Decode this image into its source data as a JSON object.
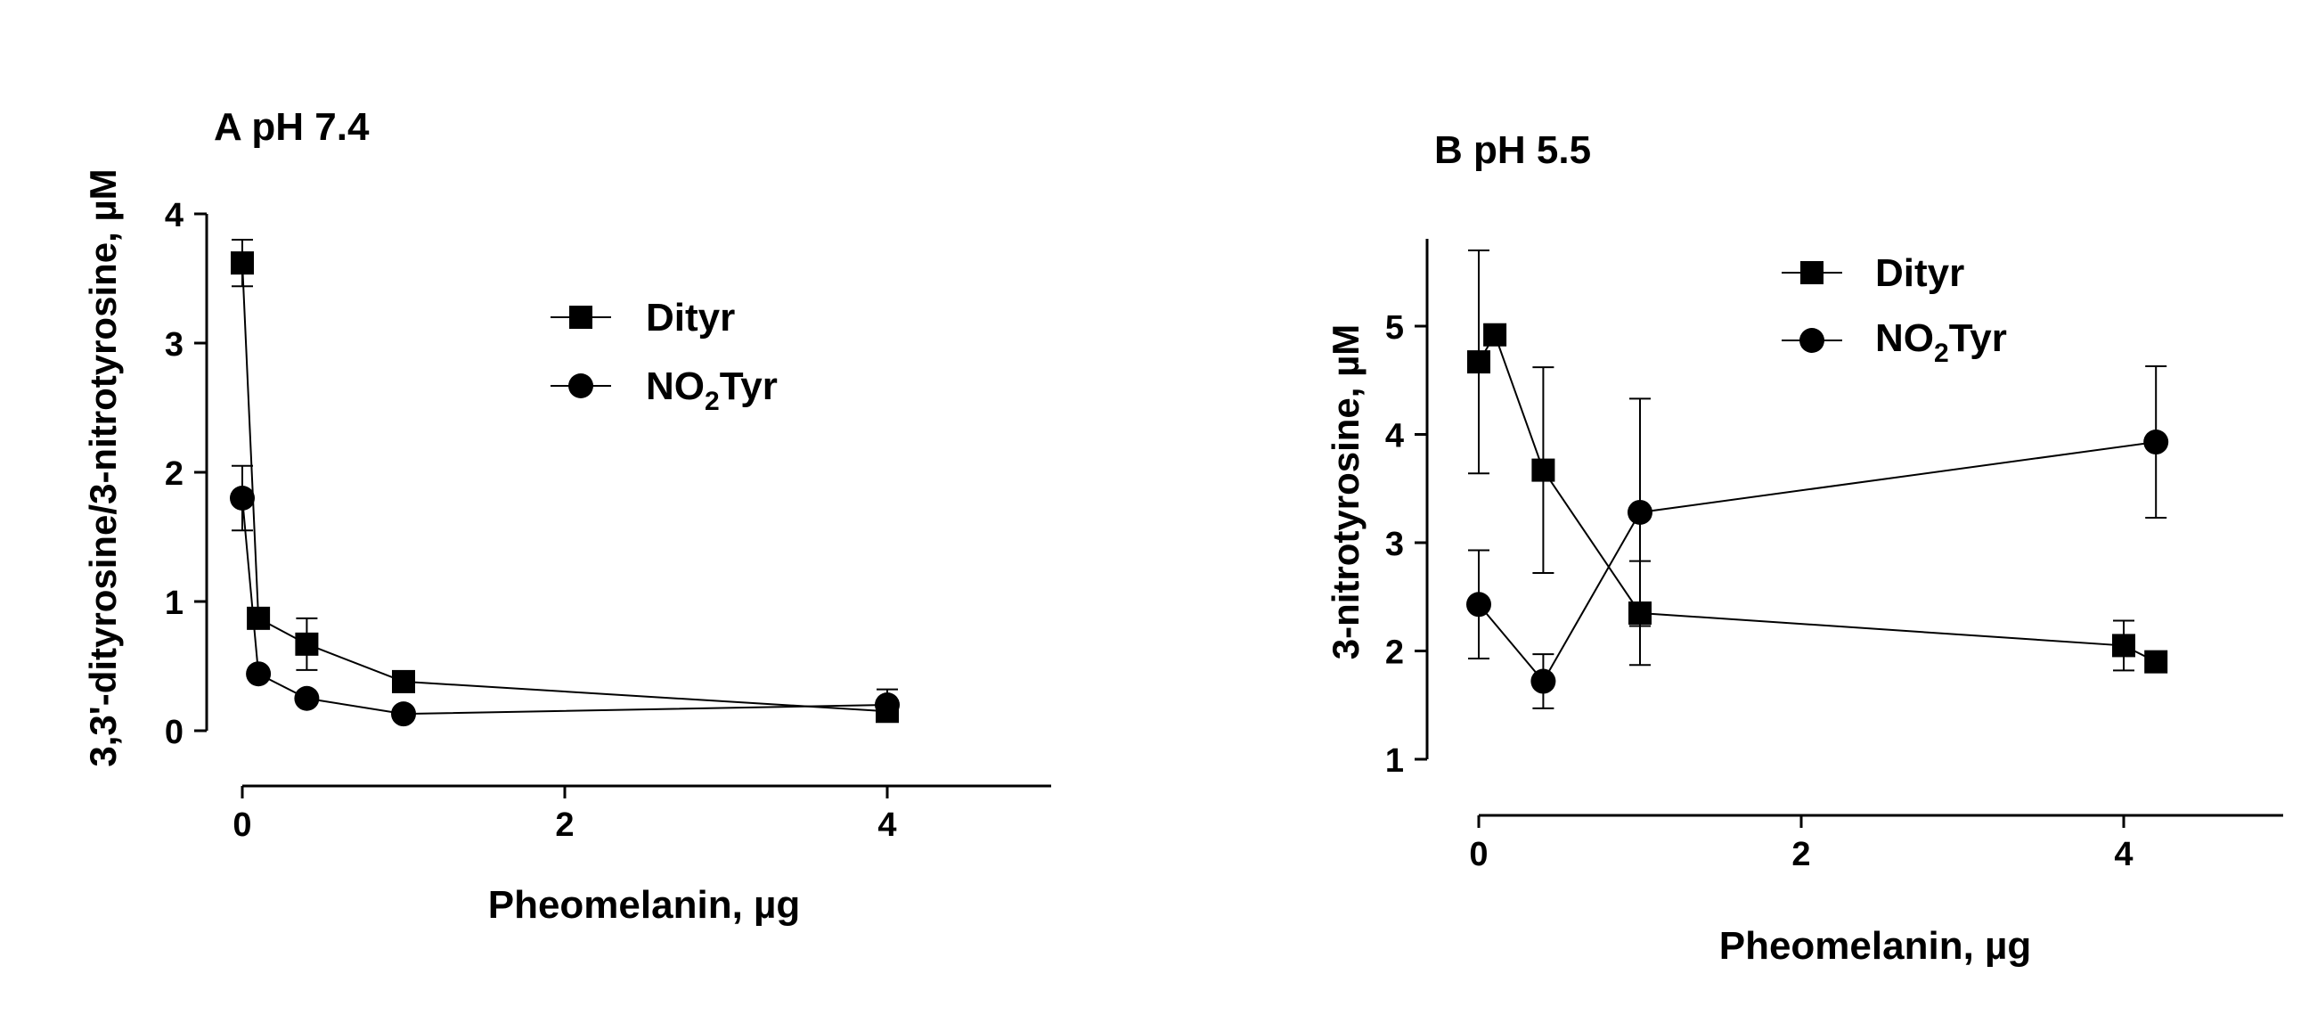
{
  "chart_data": [
    {
      "type": "line",
      "title": "A pH 7.4",
      "xlabel": "Pheomelanin, µg",
      "ylabel": "3,3'-dityrosine/3-nitrotyrosine, µM",
      "xlim": [
        0,
        5
      ],
      "ylim": [
        0,
        4
      ],
      "xticks": [
        0,
        2,
        4
      ],
      "yticks": [
        0,
        1,
        2,
        3,
        4
      ],
      "legend_position": "top-right",
      "series": [
        {
          "name": "Dityr",
          "marker": "square",
          "x": [
            0,
            0.1,
            0.4,
            1,
            4
          ],
          "y": [
            3.62,
            0.87,
            0.67,
            0.38,
            0.15
          ],
          "err": [
            0.18,
            0.04,
            0.2,
            0.05,
            0.03
          ]
        },
        {
          "name": "NO2Tyr",
          "marker": "circle",
          "x": [
            0,
            0.1,
            0.4,
            1,
            4
          ],
          "y": [
            1.8,
            0.44,
            0.25,
            0.13,
            0.2
          ],
          "err": [
            0.25,
            0.04,
            0.03,
            0.03,
            0.12
          ]
        }
      ]
    },
    {
      "type": "line",
      "title": "B pH 5.5",
      "xlabel": "Pheomelanin, µg",
      "ylabel": "3-nitrotyrosine, µM",
      "xlim": [
        0,
        5
      ],
      "ylim": [
        1,
        5.8
      ],
      "xticks": [
        0,
        2,
        4
      ],
      "yticks": [
        1,
        2,
        3,
        4,
        5
      ],
      "legend_position": "top-right",
      "series": [
        {
          "name": "Dityr",
          "marker": "square",
          "x": [
            0,
            0.1,
            0.4,
            1,
            4,
            4.2
          ],
          "y": [
            4.67,
            4.92,
            3.67,
            2.35,
            2.05,
            1.9
          ],
          "err": [
            1.03,
            0,
            0.95,
            0.48,
            0.23,
            0
          ]
        },
        {
          "name": "NO2Tyr",
          "marker": "circle",
          "x": [
            0,
            0.4,
            1,
            4.2
          ],
          "y": [
            2.43,
            1.72,
            3.28,
            3.93
          ],
          "err": [
            0.5,
            0.25,
            1.05,
            0.7
          ]
        }
      ]
    }
  ]
}
